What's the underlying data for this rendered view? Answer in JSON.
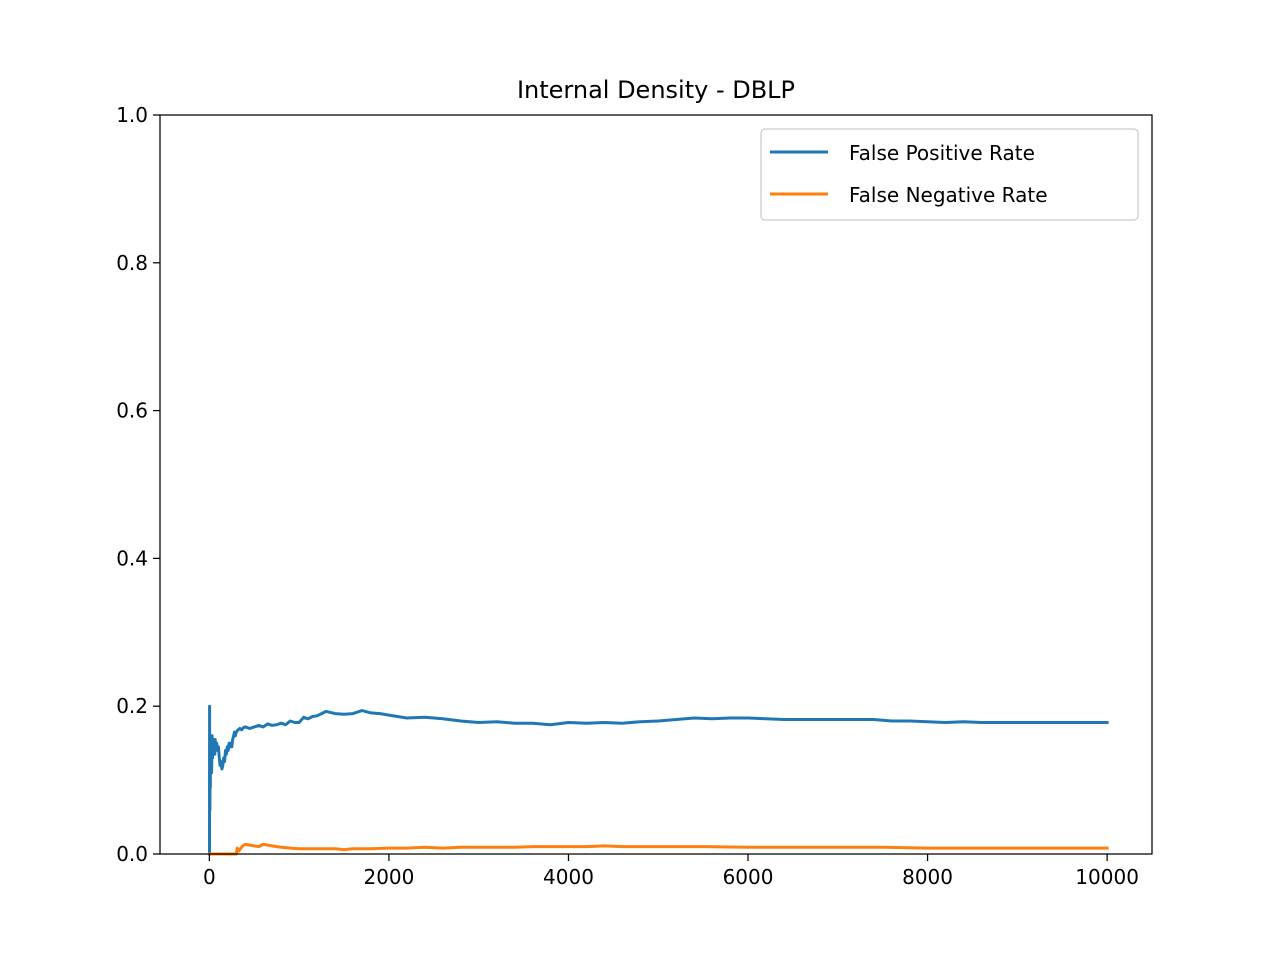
{
  "chart_data": {
    "type": "line",
    "title": "Internal Density - DBLP",
    "xlabel": "",
    "ylabel": "",
    "xlim": [
      -550,
      10500
    ],
    "ylim": [
      0.0,
      1.0
    ],
    "xticks": [
      0,
      2000,
      4000,
      6000,
      8000,
      10000
    ],
    "xtick_labels": [
      "0",
      "2000",
      "4000",
      "6000",
      "8000",
      "10000"
    ],
    "yticks": [
      0.0,
      0.2,
      0.4,
      0.6,
      0.8,
      1.0
    ],
    "ytick_labels": [
      "0.0",
      "0.2",
      "0.4",
      "0.6",
      "0.8",
      "1.0"
    ],
    "grid": false,
    "legend_position": "upper right",
    "series": [
      {
        "name": "False Positive Rate",
        "color": "#1f77b4",
        "x": [
          1,
          2,
          3,
          4,
          5,
          6,
          7,
          8,
          10,
          12,
          15,
          18,
          20,
          25,
          30,
          35,
          40,
          45,
          50,
          55,
          60,
          65,
          70,
          80,
          90,
          100,
          110,
          120,
          130,
          140,
          150,
          160,
          170,
          180,
          190,
          200,
          210,
          220,
          230,
          240,
          250,
          260,
          270,
          280,
          290,
          300,
          320,
          340,
          360,
          380,
          400,
          450,
          500,
          550,
          600,
          650,
          700,
          750,
          800,
          850,
          900,
          950,
          1000,
          1050,
          1100,
          1150,
          1200,
          1250,
          1300,
          1400,
          1500,
          1600,
          1700,
          1800,
          1900,
          2000,
          2200,
          2400,
          2600,
          2800,
          3000,
          3200,
          3400,
          3600,
          3800,
          4000,
          4200,
          4400,
          4600,
          4800,
          5000,
          5200,
          5400,
          5600,
          5800,
          6000,
          6200,
          6400,
          6600,
          6800,
          7000,
          7200,
          7400,
          7600,
          7800,
          8000,
          8200,
          8400,
          8600,
          8800,
          9000,
          9200,
          9400,
          9600,
          9800,
          10000
        ],
        "y": [
          0.0,
          0.2,
          0.1,
          0.15,
          0.08,
          0.06,
          0.1,
          0.13,
          0.09,
          0.14,
          0.16,
          0.12,
          0.15,
          0.11,
          0.16,
          0.13,
          0.145,
          0.155,
          0.14,
          0.15,
          0.135,
          0.155,
          0.145,
          0.15,
          0.14,
          0.145,
          0.13,
          0.12,
          0.125,
          0.115,
          0.12,
          0.13,
          0.125,
          0.14,
          0.135,
          0.145,
          0.14,
          0.15,
          0.145,
          0.15,
          0.145,
          0.155,
          0.16,
          0.165,
          0.16,
          0.165,
          0.168,
          0.17,
          0.168,
          0.171,
          0.172,
          0.17,
          0.172,
          0.174,
          0.172,
          0.176,
          0.174,
          0.175,
          0.177,
          0.175,
          0.18,
          0.178,
          0.178,
          0.185,
          0.183,
          0.186,
          0.187,
          0.19,
          0.193,
          0.19,
          0.189,
          0.19,
          0.194,
          0.191,
          0.19,
          0.188,
          0.184,
          0.185,
          0.183,
          0.18,
          0.178,
          0.179,
          0.177,
          0.177,
          0.175,
          0.178,
          0.177,
          0.178,
          0.177,
          0.179,
          0.18,
          0.182,
          0.184,
          0.183,
          0.184,
          0.184,
          0.183,
          0.182,
          0.182,
          0.182,
          0.182,
          0.182,
          0.182,
          0.18,
          0.18,
          0.179,
          0.178,
          0.179,
          0.178,
          0.178,
          0.178,
          0.178,
          0.178,
          0.178,
          0.178,
          0.178
        ]
      },
      {
        "name": "False Negative Rate",
        "color": "#ff7f0e",
        "x": [
          0,
          100,
          200,
          300,
          310,
          330,
          350,
          380,
          400,
          450,
          500,
          550,
          600,
          650,
          700,
          800,
          900,
          1000,
          1100,
          1200,
          1300,
          1400,
          1500,
          1600,
          1800,
          2000,
          2200,
          2400,
          2600,
          2800,
          3000,
          3200,
          3400,
          3600,
          3800,
          4000,
          4200,
          4400,
          4600,
          4800,
          5000,
          5500,
          6000,
          6500,
          7000,
          7500,
          8000,
          8500,
          9000,
          9500,
          10000
        ],
        "y": [
          0.0,
          0.0,
          0.0,
          0.0,
          0.008,
          0.004,
          0.008,
          0.012,
          0.013,
          0.012,
          0.011,
          0.01,
          0.013,
          0.012,
          0.011,
          0.009,
          0.008,
          0.007,
          0.007,
          0.007,
          0.007,
          0.007,
          0.006,
          0.007,
          0.007,
          0.008,
          0.008,
          0.009,
          0.008,
          0.009,
          0.009,
          0.009,
          0.009,
          0.01,
          0.01,
          0.01,
          0.01,
          0.011,
          0.01,
          0.01,
          0.01,
          0.01,
          0.009,
          0.009,
          0.009,
          0.009,
          0.008,
          0.008,
          0.008,
          0.008,
          0.008
        ]
      }
    ]
  }
}
